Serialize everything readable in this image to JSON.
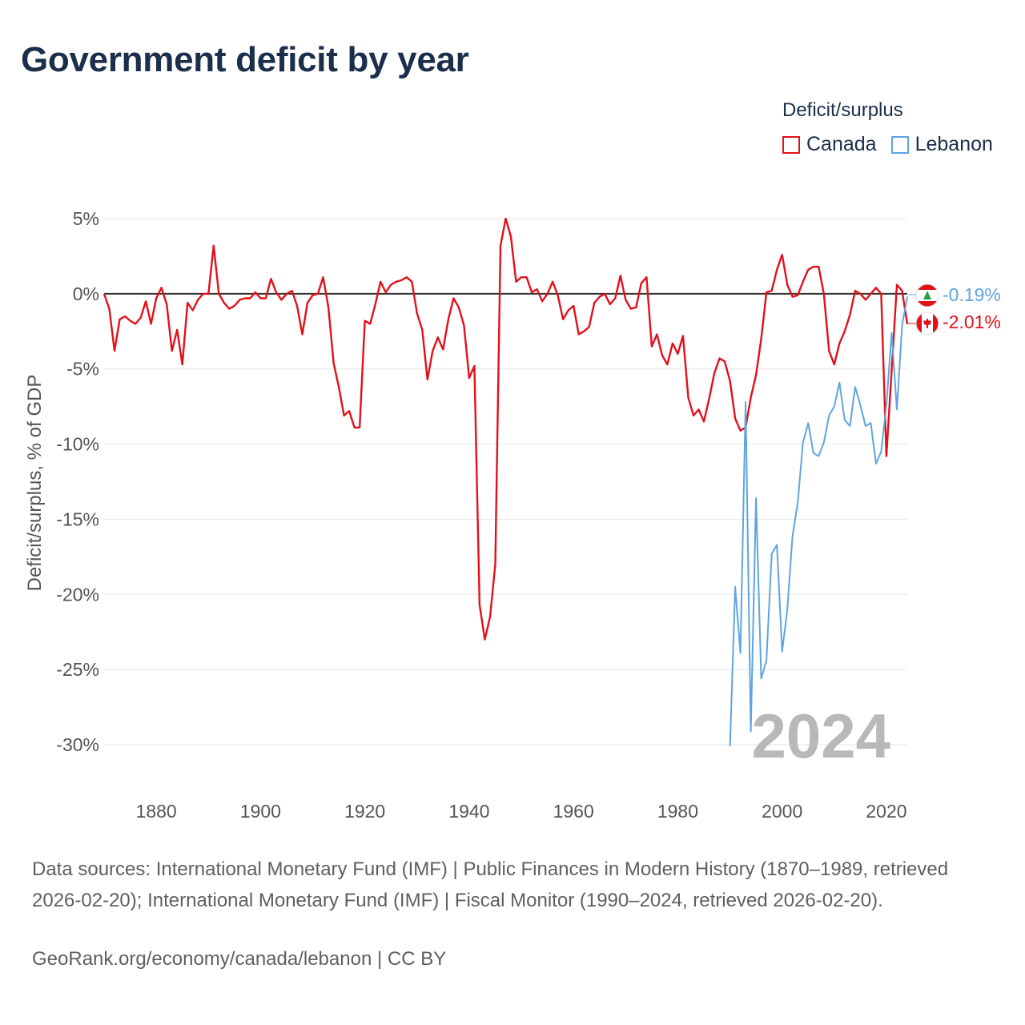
{
  "title": "Government deficit by year",
  "legend": {
    "title": "Deficit/surplus",
    "items": [
      {
        "name": "Canada",
        "color": "#e3101a"
      },
      {
        "name": "Lebanon",
        "color": "#5ea4e0"
      }
    ]
  },
  "watermark_year": "2024",
  "end_labels": {
    "lebanon": "-0.19%",
    "canada": "-2.01%"
  },
  "sources": "Data sources: International Monetary Fund (IMF) | Public Finances in Modern History (1870–1989, retrieved 2026-02-20); International Monetary Fund (IMF) | Fiscal Monitor (1990–2024, retrieved 2026-02-20).",
  "credit": "GeoRank.org/economy/canada/lebanon | CC BY",
  "chart_data": {
    "type": "line",
    "title": "Government deficit by year",
    "xlabel": "",
    "ylabel": "Deficit/surplus, % of GDP",
    "xlim": [
      1870,
      2024
    ],
    "ylim": [
      -30,
      5
    ],
    "x_ticks": [
      1880,
      1900,
      1920,
      1940,
      1960,
      1980,
      2000,
      2020
    ],
    "x_tick_labels": [
      "1880",
      "1900",
      "1920",
      "1940",
      "1960",
      "1980",
      "2000",
      "2020"
    ],
    "y_ticks": [
      5,
      0,
      -5,
      -10,
      -15,
      -20,
      -25,
      -30
    ],
    "y_tick_labels": [
      "5%",
      "0%",
      "-5%",
      "-10%",
      "-15%",
      "-20%",
      "-25%",
      "-30%"
    ],
    "zero_line": true,
    "grid": true,
    "series": [
      {
        "name": "Canada",
        "color": "#e3101a",
        "x": [
          1870,
          1871,
          1872,
          1873,
          1874,
          1875,
          1876,
          1877,
          1878,
          1879,
          1880,
          1881,
          1882,
          1883,
          1884,
          1885,
          1886,
          1887,
          1888,
          1889,
          1890,
          1891,
          1892,
          1893,
          1894,
          1895,
          1896,
          1897,
          1898,
          1899,
          1900,
          1901,
          1902,
          1903,
          1904,
          1905,
          1906,
          1907,
          1908,
          1909,
          1910,
          1911,
          1912,
          1913,
          1914,
          1915,
          1916,
          1917,
          1918,
          1919,
          1920,
          1921,
          1922,
          1923,
          1924,
          1925,
          1926,
          1927,
          1928,
          1929,
          1930,
          1931,
          1932,
          1933,
          1934,
          1935,
          1936,
          1937,
          1938,
          1939,
          1940,
          1941,
          1942,
          1943,
          1944,
          1945,
          1946,
          1947,
          1948,
          1949,
          1950,
          1951,
          1952,
          1953,
          1954,
          1955,
          1956,
          1957,
          1958,
          1959,
          1960,
          1961,
          1962,
          1963,
          1964,
          1965,
          1966,
          1967,
          1968,
          1969,
          1970,
          1971,
          1972,
          1973,
          1974,
          1975,
          1976,
          1977,
          1978,
          1979,
          1980,
          1981,
          1982,
          1983,
          1984,
          1985,
          1986,
          1987,
          1988,
          1989,
          1990,
          1991,
          1992,
          1993,
          1994,
          1995,
          1996,
          1997,
          1998,
          1999,
          2000,
          2001,
          2002,
          2003,
          2004,
          2005,
          2006,
          2007,
          2008,
          2009,
          2010,
          2011,
          2012,
          2013,
          2014,
          2015,
          2016,
          2017,
          2018,
          2019,
          2020,
          2021,
          2022,
          2023,
          2024
        ],
        "values": [
          0.0,
          -1.0,
          -3.8,
          -1.7,
          -1.5,
          -1.8,
          -2.0,
          -1.6,
          -0.5,
          -2.0,
          -0.3,
          0.4,
          -0.7,
          -3.8,
          -2.4,
          -4.7,
          -0.6,
          -1.1,
          -0.4,
          0.0,
          0.0,
          3.2,
          0.0,
          -0.6,
          -1.0,
          -0.8,
          -0.4,
          -0.3,
          -0.3,
          0.1,
          -0.3,
          -0.3,
          1.0,
          0.1,
          -0.4,
          0.0,
          0.2,
          -0.8,
          -2.7,
          -0.6,
          -0.1,
          0.0,
          1.1,
          -0.9,
          -4.6,
          -6.2,
          -8.1,
          -7.8,
          -8.9,
          -8.9,
          -1.8,
          -2.0,
          -0.7,
          0.8,
          0.1,
          0.6,
          0.8,
          0.9,
          1.1,
          0.8,
          -1.3,
          -2.4,
          -5.7,
          -3.8,
          -2.9,
          -3.7,
          -1.7,
          -0.3,
          -0.9,
          -2.1,
          -5.6,
          -4.8,
          -20.7,
          -23.0,
          -21.5,
          -18.0,
          3.2,
          5.0,
          3.8,
          0.8,
          1.1,
          1.1,
          0.1,
          0.3,
          -0.5,
          0.0,
          0.8,
          -0.1,
          -1.7,
          -1.1,
          -0.8,
          -2.7,
          -2.5,
          -2.2,
          -0.6,
          -0.2,
          0.0,
          -0.7,
          -0.3,
          1.2,
          -0.4,
          -1.0,
          -0.9,
          0.7,
          1.1,
          -3.5,
          -2.7,
          -4.1,
          -4.7,
          -3.3,
          -4.0,
          -2.8,
          -6.9,
          -8.1,
          -7.7,
          -8.5,
          -7.0,
          -5.3,
          -4.3,
          -4.5,
          -5.8,
          -8.3,
          -9.1,
          -8.9,
          -6.9,
          -5.4,
          -3.0,
          0.1,
          0.2,
          1.6,
          2.6,
          0.6,
          -0.2,
          -0.1,
          0.8,
          1.6,
          1.8,
          1.8,
          0.0,
          -3.8,
          -4.7,
          -3.3,
          -2.5,
          -1.4,
          0.2,
          0.0,
          -0.4,
          0.0,
          0.4,
          0.0,
          -10.8,
          -5.1,
          0.6,
          0.2,
          -2.01
        ]
      },
      {
        "name": "Lebanon",
        "color": "#5ea4e0",
        "x": [
          1990,
          1991,
          1992,
          1993,
          1994,
          1995,
          1996,
          1997,
          1998,
          1999,
          2000,
          2001,
          2002,
          2003,
          2004,
          2005,
          2006,
          2007,
          2008,
          2009,
          2010,
          2011,
          2012,
          2013,
          2014,
          2015,
          2016,
          2017,
          2018,
          2019,
          2020,
          2021,
          2022,
          2023,
          2024
        ],
        "values": [
          -30.1,
          -19.5,
          -23.9,
          -7.2,
          -29.1,
          -13.6,
          -25.6,
          -24.4,
          -17.3,
          -16.7,
          -23.8,
          -21.0,
          -16.1,
          -13.9,
          -9.9,
          -8.6,
          -10.6,
          -10.8,
          -9.9,
          -8.1,
          -7.5,
          -5.9,
          -8.4,
          -8.8,
          -6.2,
          -7.4,
          -8.8,
          -8.6,
          -11.3,
          -10.5,
          -7.4,
          -2.6,
          -7.7,
          -2.1,
          -0.19
        ]
      }
    ]
  }
}
